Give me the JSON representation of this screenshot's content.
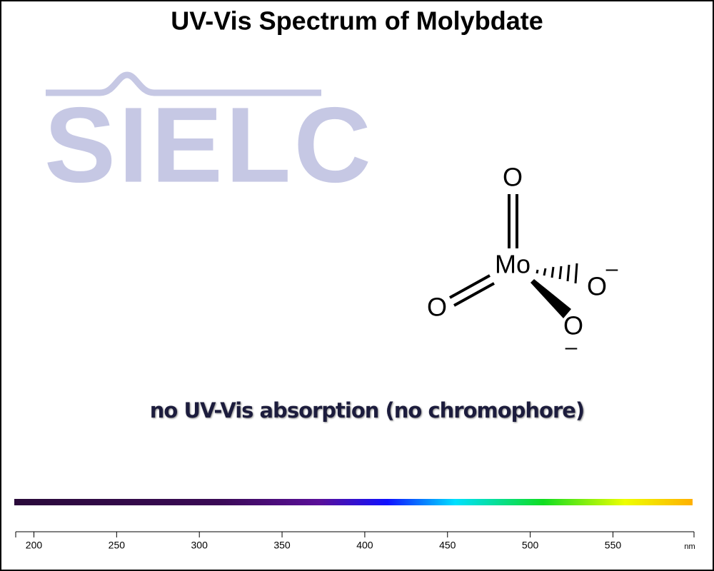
{
  "chart_data": {
    "type": "spectrum",
    "title": "UV-Vis Spectrum of Molybdate",
    "logo": "SIELC",
    "molecule": {
      "center": "Mo",
      "atoms": [
        "O",
        "O",
        "O",
        "O"
      ],
      "charges": [
        "–",
        "–"
      ]
    },
    "annotation": "no UV-Vis absorption (no chromophore)",
    "xlabel": "nm",
    "xlim": [
      189,
      599
    ],
    "xticks": [
      200,
      250,
      300,
      350,
      400,
      450,
      500,
      550
    ]
  }
}
